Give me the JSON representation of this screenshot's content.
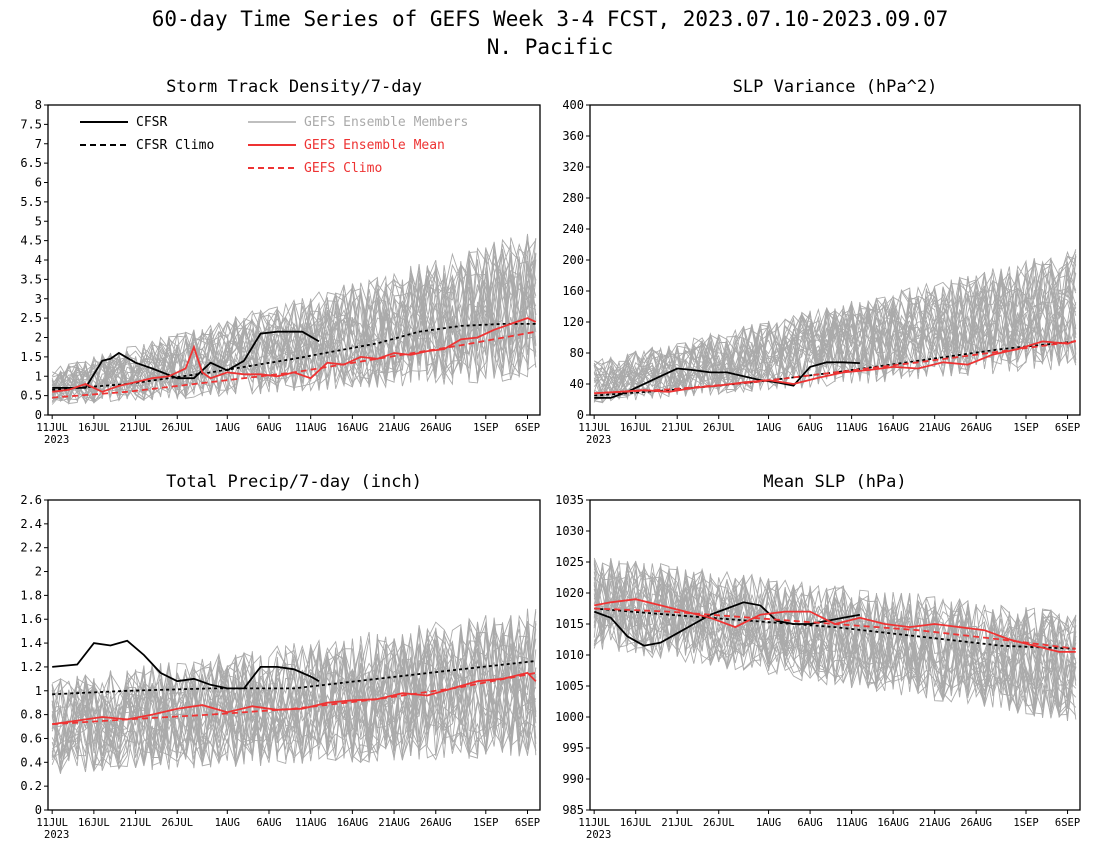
{
  "figure": {
    "title_line1": "60-day Time Series of GEFS Week 3-4 FCST, 2023.07.10-2023.09.07",
    "title_line2": "N. Pacific"
  },
  "colors": {
    "cfsr": "#000000",
    "members": "#aaaaaa",
    "mean": "#ee3333",
    "gefs_clim": "#ee3333"
  },
  "legend": {
    "cfsr": "CFSR",
    "cfsr_clim": "CFSR Climo",
    "members": "GEFS Ensemble Members",
    "mean": "GEFS Ensemble Mean",
    "gefs_clim": "GEFS Climo"
  },
  "chart_data": [
    {
      "type": "line",
      "title": "Storm Track Density/7-day",
      "xlabel": "",
      "ylabel": "",
      "x_tick_labels": [
        "11JUL",
        "16JUL",
        "21JUL",
        "26JUL",
        "1AUG",
        "6AUG",
        "11AUG",
        "16AUG",
        "21AUG",
        "26AUG",
        "1SEP",
        "6SEP"
      ],
      "x_year_label": "2023",
      "ylim": [
        0,
        8
      ],
      "y_ticks": [
        0,
        0.5,
        1,
        1.5,
        2,
        2.5,
        3,
        3.5,
        4,
        4.5,
        5,
        5.5,
        6,
        6.5,
        7,
        7.5,
        8
      ],
      "legend_position": "top-left",
      "members_range": {
        "start": [
          0.25,
          1.2
        ],
        "end": [
          0.9,
          4.8
        ],
        "count": 30
      },
      "series": [
        {
          "name": "CFSR",
          "style": "solid",
          "x": [
            1,
            3,
            5,
            7,
            8,
            9,
            11,
            13,
            16,
            18,
            20,
            22,
            24,
            26,
            28,
            29,
            31,
            33
          ],
          "y": [
            0.7,
            0.7,
            0.7,
            1.4,
            1.45,
            1.6,
            1.35,
            1.2,
            0.95,
            0.95,
            1.35,
            1.15,
            1.4,
            2.1,
            2.15,
            2.15,
            2.15,
            1.9
          ]
        },
        {
          "name": "CFSR Climo",
          "style": "dashed",
          "x": [
            1,
            10,
            20,
            30,
            40,
            45,
            50,
            55,
            59
          ],
          "y": [
            0.65,
            0.8,
            1.1,
            1.45,
            1.85,
            2.15,
            2.3,
            2.35,
            2.35
          ]
        },
        {
          "name": "GEFS Ensemble Mean",
          "style": "solid",
          "x": [
            1,
            3,
            5,
            7,
            9,
            11,
            13,
            15,
            17,
            18,
            19,
            20,
            22,
            24,
            26,
            28,
            30,
            32,
            34,
            36,
            38,
            40,
            42,
            44,
            46,
            48,
            50,
            52,
            54,
            56,
            58,
            59
          ],
          "y": [
            0.6,
            0.65,
            0.8,
            0.6,
            0.75,
            0.85,
            0.95,
            1.0,
            1.2,
            1.75,
            1.1,
            0.95,
            1.1,
            1.05,
            1.05,
            1.0,
            1.1,
            0.95,
            1.35,
            1.3,
            1.5,
            1.45,
            1.6,
            1.55,
            1.65,
            1.7,
            1.95,
            2.0,
            2.2,
            2.35,
            2.5,
            2.4
          ]
        },
        {
          "name": "GEFS Climo",
          "style": "dashed",
          "x": [
            1,
            10,
            20,
            30,
            40,
            50,
            59
          ],
          "y": [
            0.45,
            0.6,
            0.85,
            1.1,
            1.45,
            1.8,
            2.15
          ]
        }
      ]
    },
    {
      "type": "line",
      "title": "SLP Variance (hPa^2)",
      "xlabel": "",
      "ylabel": "",
      "x_tick_labels": [
        "11JUL",
        "16JUL",
        "21JUL",
        "26JUL",
        "1AUG",
        "6AUG",
        "11AUG",
        "16AUG",
        "21AUG",
        "26AUG",
        "1SEP",
        "6SEP"
      ],
      "x_year_label": "2023",
      "ylim": [
        0,
        400
      ],
      "y_ticks": [
        0,
        40,
        80,
        120,
        160,
        200,
        240,
        280,
        320,
        360,
        400
      ],
      "members_range": {
        "start": [
          15,
          70
        ],
        "end": [
          60,
          215
        ],
        "count": 30
      },
      "series": [
        {
          "name": "CFSR",
          "style": "solid",
          "x": [
            1,
            3,
            5,
            8,
            11,
            13,
            15,
            17,
            19,
            21,
            23,
            25,
            27,
            29,
            31,
            33
          ],
          "y": [
            22,
            22,
            30,
            45,
            60,
            58,
            55,
            55,
            50,
            45,
            42,
            38,
            62,
            68,
            68,
            67
          ]
        },
        {
          "name": "CFSR Climo",
          "style": "dashed",
          "x": [
            1,
            10,
            20,
            30,
            40,
            50,
            59
          ],
          "y": [
            25,
            32,
            42,
            55,
            70,
            85,
            95
          ]
        },
        {
          "name": "GEFS Ensemble Mean",
          "style": "solid",
          "x": [
            1,
            4,
            7,
            10,
            13,
            16,
            19,
            22,
            25,
            28,
            31,
            34,
            37,
            40,
            43,
            46,
            49,
            52,
            55,
            58,
            59
          ],
          "y": [
            28,
            30,
            32,
            30,
            35,
            38,
            42,
            45,
            40,
            48,
            55,
            58,
            62,
            60,
            68,
            65,
            78,
            85,
            95,
            92,
            96
          ]
        },
        {
          "name": "GEFS Climo",
          "style": "dashed",
          "x": [
            1,
            10,
            20,
            30,
            40,
            50,
            59
          ],
          "y": [
            28,
            33,
            42,
            55,
            68,
            82,
            95
          ]
        }
      ]
    },
    {
      "type": "line",
      "title": "Total Precip/7-day (inch)",
      "xlabel": "",
      "ylabel": "",
      "x_tick_labels": [
        "11JUL",
        "16JUL",
        "21JUL",
        "26JUL",
        "1AUG",
        "6AUG",
        "11AUG",
        "16AUG",
        "21AUG",
        "26AUG",
        "1SEP",
        "6SEP"
      ],
      "x_year_label": "2023",
      "ylim": [
        0,
        2.6
      ],
      "y_ticks": [
        0,
        0.2,
        0.4,
        0.6,
        0.8,
        1,
        1.2,
        1.4,
        1.6,
        1.8,
        2,
        2.2,
        2.4,
        2.6
      ],
      "members_range": {
        "start": [
          0.3,
          1.1
        ],
        "end": [
          0.45,
          1.7
        ],
        "count": 30
      },
      "series": [
        {
          "name": "CFSR",
          "style": "solid",
          "x": [
            1,
            4,
            6,
            8,
            10,
            12,
            14,
            16,
            18,
            20,
            22,
            24,
            26,
            28,
            30,
            32,
            33
          ],
          "y": [
            1.2,
            1.22,
            1.4,
            1.38,
            1.42,
            1.3,
            1.15,
            1.08,
            1.1,
            1.05,
            1.02,
            1.02,
            1.2,
            1.2,
            1.18,
            1.12,
            1.08
          ]
        },
        {
          "name": "CFSR Climo",
          "style": "dashed",
          "x": [
            1,
            10,
            20,
            30,
            40,
            50,
            59
          ],
          "y": [
            0.97,
            1.0,
            1.02,
            1.02,
            1.1,
            1.18,
            1.25
          ]
        },
        {
          "name": "GEFS Ensemble Mean",
          "style": "solid",
          "x": [
            1,
            4,
            7,
            10,
            13,
            16,
            19,
            22,
            25,
            28,
            31,
            34,
            37,
            40,
            43,
            46,
            49,
            52,
            55,
            58,
            59
          ],
          "y": [
            0.72,
            0.75,
            0.78,
            0.76,
            0.8,
            0.85,
            0.88,
            0.82,
            0.87,
            0.84,
            0.85,
            0.9,
            0.92,
            0.93,
            0.98,
            0.96,
            1.02,
            1.08,
            1.1,
            1.15,
            1.08
          ]
        },
        {
          "name": "GEFS Climo",
          "style": "dashed",
          "x": [
            1,
            10,
            20,
            30,
            40,
            50,
            59
          ],
          "y": [
            0.72,
            0.76,
            0.8,
            0.85,
            0.93,
            1.03,
            1.15
          ]
        }
      ]
    },
    {
      "type": "line",
      "title": "Mean SLP (hPa)",
      "xlabel": "",
      "ylabel": "",
      "x_tick_labels": [
        "11JUL",
        "16JUL",
        "21JUL",
        "26JUL",
        "1AUG",
        "6AUG",
        "11AUG",
        "16AUG",
        "21AUG",
        "26AUG",
        "1SEP",
        "6SEP"
      ],
      "x_year_label": "2023",
      "ylim": [
        985,
        1035
      ],
      "y_ticks": [
        985,
        990,
        995,
        1000,
        1005,
        1010,
        1015,
        1020,
        1025,
        1030,
        1035
      ],
      "members_range": {
        "start": [
          1011,
          1026
        ],
        "end": [
          999,
          1017
        ],
        "count": 30
      },
      "series": [
        {
          "name": "CFSR",
          "style": "solid",
          "x": [
            1,
            3,
            5,
            7,
            9,
            11,
            13,
            15,
            17,
            19,
            21,
            23,
            25,
            27,
            29,
            31,
            33
          ],
          "y": [
            1017,
            1016,
            1013,
            1011.5,
            1012,
            1013.5,
            1015,
            1016.5,
            1017.5,
            1018.5,
            1018,
            1015.5,
            1015,
            1015,
            1015.5,
            1016,
            1016.5
          ]
        },
        {
          "name": "CFSR Climo",
          "style": "dashed",
          "x": [
            1,
            10,
            20,
            30,
            40,
            50,
            59
          ],
          "y": [
            1017.5,
            1016.5,
            1015.5,
            1014.5,
            1013,
            1011.5,
            1011
          ]
        },
        {
          "name": "GEFS Ensemble Mean",
          "style": "solid",
          "x": [
            1,
            3,
            6,
            9,
            12,
            15,
            18,
            21,
            24,
            27,
            30,
            33,
            36,
            39,
            42,
            45,
            48,
            51,
            54,
            57,
            59
          ],
          "y": [
            1018,
            1018.5,
            1019,
            1018,
            1017,
            1016,
            1014.5,
            1016.5,
            1017,
            1017,
            1015,
            1016,
            1015,
            1014.5,
            1015,
            1014.5,
            1014,
            1012.5,
            1011.5,
            1010.5,
            1010.5
          ]
        },
        {
          "name": "GEFS Climo",
          "style": "dashed",
          "x": [
            1,
            10,
            20,
            30,
            40,
            50,
            59
          ],
          "y": [
            1017.5,
            1017,
            1016,
            1015,
            1014,
            1012.5,
            1011
          ]
        }
      ]
    }
  ]
}
